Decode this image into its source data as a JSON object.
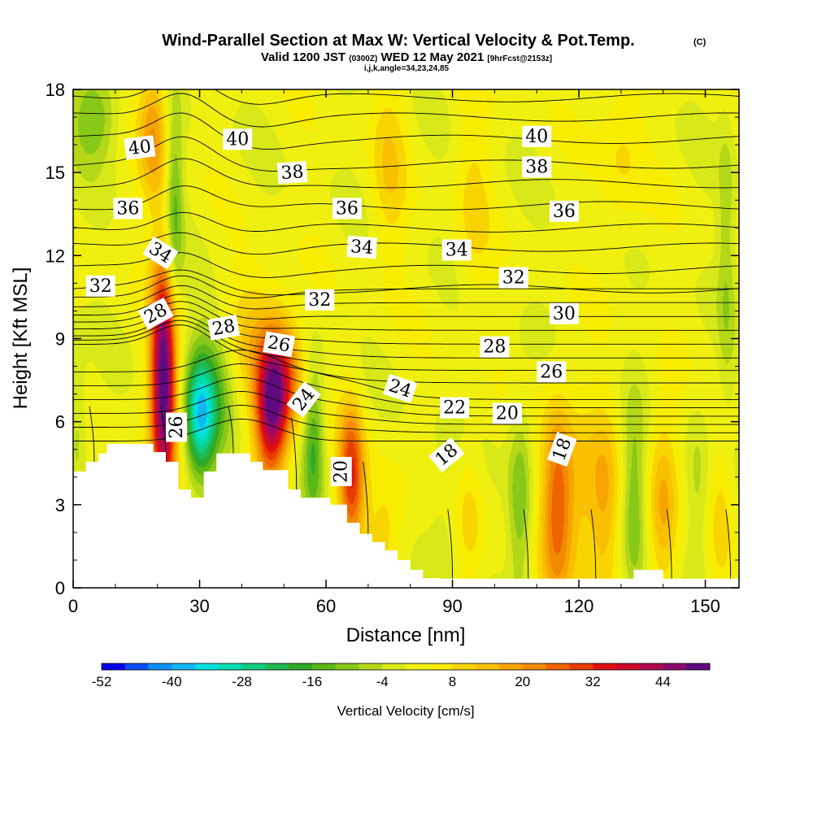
{
  "title": "Wind-Parallel Section at Max W: Vertical Velocity & Pot.Temp.",
  "title_mark": "(C)",
  "subtitle_a": "Valid 1200 JST",
  "subtitle_b": "(0300Z)",
  "subtitle_c": "WED 12 May 2021",
  "subtitle_d": "[9hrFcst@2153z]",
  "subtitle2": "i,j,k,angle=34,23,24,85",
  "chart_data": {
    "type": "heatmap",
    "title": "Wind-Parallel Section at Max W: Vertical Velocity & Pot.Temp.",
    "xlabel": "Distance [nm]",
    "ylabel": "Height [Kft MSL]",
    "xlim": [
      0,
      158
    ],
    "ylim": [
      0,
      18
    ],
    "x_ticks": [
      0,
      30,
      60,
      90,
      120,
      150
    ],
    "y_ticks": [
      0,
      3,
      6,
      9,
      12,
      15,
      18
    ],
    "colorbar": {
      "label": "Vertical Velocity [cm/s]",
      "levels": [
        -52,
        -48,
        -44,
        -40,
        -36,
        -32,
        -28,
        -24,
        -20,
        -16,
        -12,
        -8,
        -4,
        0,
        4,
        8,
        12,
        16,
        20,
        24,
        28,
        32,
        36,
        40,
        44,
        48,
        52
      ],
      "tick_labels": [
        "-52",
        "-40",
        "-28",
        "-16",
        "-4",
        "8",
        "20",
        "32",
        "44"
      ],
      "colors": [
        "#0000ee",
        "#0a4ef6",
        "#1190f4",
        "#12b6f0",
        "#00e0e0",
        "#00dcb0",
        "#10cc80",
        "#20b850",
        "#30a828",
        "#5cb818",
        "#88c818",
        "#b4d818",
        "#d8e818",
        "#f0f010",
        "#f8ec00",
        "#f8d400",
        "#f8c000",
        "#f8a400",
        "#f08a00",
        "#f06400",
        "#e83c00",
        "#e01010",
        "#cc0a2a",
        "#b00a50",
        "#8c0a70",
        "#600a80"
      ]
    },
    "terrain": [
      [
        0,
        4.2
      ],
      [
        3,
        4.2
      ],
      [
        3,
        4.55
      ],
      [
        6,
        4.55
      ],
      [
        6,
        4.85
      ],
      [
        8,
        4.85
      ],
      [
        8,
        5.2
      ],
      [
        19,
        5.2
      ],
      [
        19,
        4.9
      ],
      [
        22,
        4.9
      ],
      [
        22,
        4.55
      ],
      [
        25,
        4.55
      ],
      [
        25,
        3.55
      ],
      [
        28,
        3.55
      ],
      [
        28,
        3.25
      ],
      [
        31,
        3.25
      ],
      [
        31,
        4.2
      ],
      [
        34,
        4.2
      ],
      [
        34,
        4.85
      ],
      [
        42,
        4.85
      ],
      [
        42,
        4.55
      ],
      [
        45,
        4.55
      ],
      [
        45,
        4.25
      ],
      [
        51,
        4.25
      ],
      [
        51,
        3.55
      ],
      [
        54,
        3.55
      ],
      [
        54,
        3.25
      ],
      [
        61,
        3.25
      ],
      [
        61,
        3.0
      ],
      [
        65,
        3.0
      ],
      [
        65,
        2.35
      ],
      [
        68,
        2.35
      ],
      [
        68,
        1.95
      ],
      [
        71,
        1.95
      ],
      [
        71,
        1.65
      ],
      [
        74,
        1.65
      ],
      [
        74,
        1.35
      ],
      [
        77,
        1.35
      ],
      [
        77,
        1.0
      ],
      [
        80,
        1.0
      ],
      [
        80,
        0.65
      ],
      [
        83,
        0.65
      ],
      [
        83,
        0.35
      ],
      [
        87,
        0.35
      ],
      [
        87,
        0.33
      ],
      [
        133,
        0.33
      ],
      [
        133,
        0.65
      ],
      [
        140,
        0.65
      ],
      [
        140,
        0.33
      ],
      [
        158,
        0.33
      ]
    ],
    "w_features": [
      {
        "x": 21.5,
        "z": 7.5,
        "w": 52,
        "sx": 2.2,
        "sz": 3.0
      },
      {
        "x": 19,
        "z": 16.5,
        "w": 18,
        "sx": 2.5,
        "sz": 1.8
      },
      {
        "x": 24,
        "z": 13.5,
        "w": -16,
        "sx": 1.5,
        "sz": 2.8
      },
      {
        "x": 5,
        "z": 17,
        "w": -14,
        "sx": 4.0,
        "sz": 1.2
      },
      {
        "x": 30,
        "z": 6.2,
        "w": -30,
        "sx": 2.5,
        "sz": 1.6
      },
      {
        "x": 34,
        "z": 7.2,
        "w": -14,
        "sx": 3.5,
        "sz": 1.8
      },
      {
        "x": 42,
        "z": 9.5,
        "w": 10,
        "sx": 4.5,
        "sz": 1.5
      },
      {
        "x": 47,
        "z": 6.3,
        "w": 40,
        "sx": 2.8,
        "sz": 1.8
      },
      {
        "x": 50,
        "z": 7.8,
        "w": 22,
        "sx": 3.5,
        "sz": 1.5
      },
      {
        "x": 57,
        "z": 5.3,
        "w": -18,
        "sx": 1.8,
        "sz": 2.0
      },
      {
        "x": 66,
        "z": 4.0,
        "w": 30,
        "sx": 2.2,
        "sz": 1.8
      },
      {
        "x": 74,
        "z": 2.0,
        "w": 10,
        "sx": 3.5,
        "sz": 1.6
      },
      {
        "x": 88,
        "z": 2.5,
        "w": -5,
        "sx": 3.5,
        "sz": 2.2
      },
      {
        "x": 94,
        "z": 2.5,
        "w": 9,
        "sx": 2.5,
        "sz": 2.0
      },
      {
        "x": 106,
        "z": 3.0,
        "w": -14,
        "sx": 2.0,
        "sz": 2.5
      },
      {
        "x": 115,
        "z": 3.0,
        "w": 28,
        "sx": 2.8,
        "sz": 2.5
      },
      {
        "x": 121,
        "z": 3.0,
        "w": 9,
        "sx": 2.5,
        "sz": 2.5
      },
      {
        "x": 126,
        "z": 3.0,
        "w": 13,
        "sx": 2.5,
        "sz": 2.5
      },
      {
        "x": 133,
        "z": 3.0,
        "w": -14,
        "sx": 2.0,
        "sz": 2.5
      },
      {
        "x": 140,
        "z": 3.0,
        "w": 16,
        "sx": 2.5,
        "sz": 2.5
      },
      {
        "x": 148,
        "z": 3.0,
        "w": -8,
        "sx": 2.0,
        "sz": 2.5
      },
      {
        "x": 154,
        "z": 3.0,
        "w": 8,
        "sx": 2.0,
        "sz": 2.2
      },
      {
        "x": 75,
        "z": 15.0,
        "w": 9,
        "sx": 3.0,
        "sz": 2.5
      },
      {
        "x": 95,
        "z": 14.0,
        "w": 7,
        "sx": 3.0,
        "sz": 3.0
      },
      {
        "x": 130,
        "z": 16.0,
        "w": 7,
        "sx": 4.0,
        "sz": 2.5
      },
      {
        "x": 155,
        "z": 12.0,
        "w": -8,
        "sx": 1.5,
        "sz": 4.0
      },
      {
        "x": 1,
        "z": 6.0,
        "w": -8,
        "sx": 1.5,
        "sz": 1.8
      }
    ],
    "theta": {
      "upper_levels": [
        32,
        33,
        34,
        35,
        36,
        37,
        38,
        39,
        40,
        41
      ],
      "upper_heights": [
        10.8,
        11.5,
        12.3,
        13.0,
        13.8,
        14.6,
        15.3,
        16.2,
        17.0,
        17.7
      ],
      "mid_levels": [
        24,
        25,
        26,
        27,
        28,
        29,
        30,
        31
      ],
      "mid_heights_left": [
        8.8,
        8.95,
        9.1,
        9.35,
        9.6,
        9.85,
        10.15,
        10.5
      ],
      "mid_heights_right": [
        7.4,
        7.85,
        8.3,
        8.8,
        9.3,
        9.8,
        10.3,
        10.8
      ],
      "low_levels": [
        18,
        19,
        20,
        21,
        22,
        23
      ],
      "low_heights": [
        5.3,
        5.6,
        5.9,
        6.2,
        6.5,
        6.8
      ]
    },
    "contour_labels": [
      {
        "text": "40",
        "x": 15.8,
        "z": 15.9,
        "rot": -7
      },
      {
        "text": "40",
        "x": 39,
        "z": 16.2,
        "rot": 0
      },
      {
        "text": "40",
        "x": 110,
        "z": 16.3,
        "rot": 0
      },
      {
        "text": "38",
        "x": 52,
        "z": 15.0,
        "rot": -4
      },
      {
        "text": "38",
        "x": 110,
        "z": 15.2,
        "rot": 0
      },
      {
        "text": "36",
        "x": 13,
        "z": 13.7,
        "rot": 0
      },
      {
        "text": "36",
        "x": 65,
        "z": 13.7,
        "rot": 0
      },
      {
        "text": "36",
        "x": 116.5,
        "z": 13.6,
        "rot": 0
      },
      {
        "text": "34",
        "x": 20.7,
        "z": 12.1,
        "rot": 32
      },
      {
        "text": "34",
        "x": 68.5,
        "z": 12.3,
        "rot": 4
      },
      {
        "text": "34",
        "x": 91,
        "z": 12.2,
        "rot": 0
      },
      {
        "text": "32",
        "x": 6.5,
        "z": 10.9,
        "rot": 0
      },
      {
        "text": "32",
        "x": 58.5,
        "z": 10.4,
        "rot": 0
      },
      {
        "text": "32",
        "x": 104.5,
        "z": 11.2,
        "rot": 0
      },
      {
        "text": "30",
        "x": 116.5,
        "z": 9.9,
        "rot": 0
      },
      {
        "text": "28",
        "x": 19.6,
        "z": 9.9,
        "rot": -28
      },
      {
        "text": "28",
        "x": 35.7,
        "z": 9.4,
        "rot": -10
      },
      {
        "text": "28",
        "x": 100,
        "z": 8.7,
        "rot": 0
      },
      {
        "text": "26",
        "x": 48.8,
        "z": 8.8,
        "rot": 10
      },
      {
        "text": "26",
        "x": 113.5,
        "z": 7.8,
        "rot": 0
      },
      {
        "text": "26",
        "x": 24.5,
        "z": 5.8,
        "rot": -90
      },
      {
        "text": "24",
        "x": 54.7,
        "z": 6.8,
        "rot": -52
      },
      {
        "text": "24",
        "x": 77.6,
        "z": 7.2,
        "rot": 18
      },
      {
        "text": "22",
        "x": 90.5,
        "z": 6.5,
        "rot": 0
      },
      {
        "text": "20",
        "x": 103,
        "z": 6.3,
        "rot": 0
      },
      {
        "text": "20",
        "x": 63.6,
        "z": 4.2,
        "rot": -90
      },
      {
        "text": "18",
        "x": 88.6,
        "z": 4.8,
        "rot": -40
      },
      {
        "text": "18",
        "x": 116,
        "z": 5.0,
        "rot": -70
      }
    ]
  }
}
